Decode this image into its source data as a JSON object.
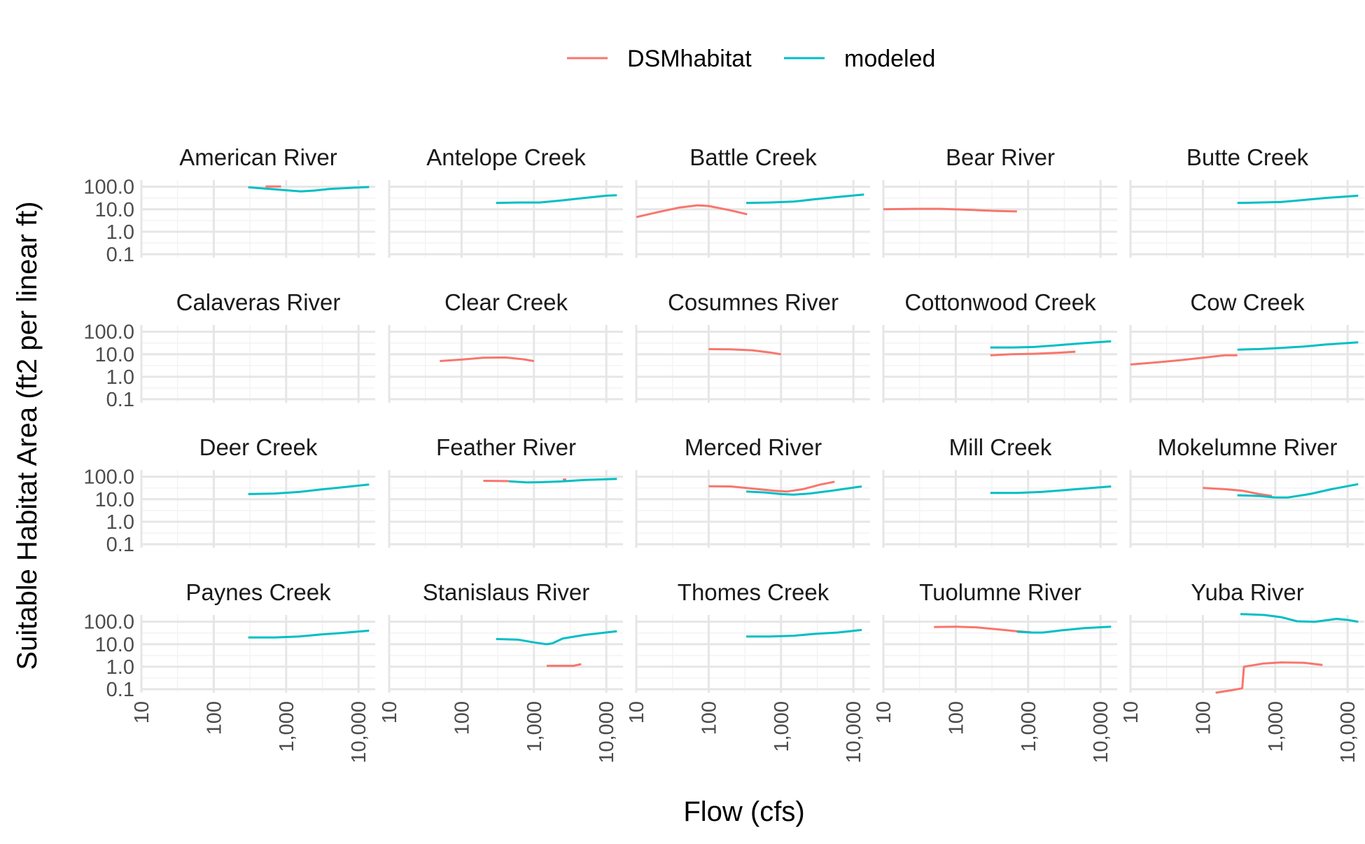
{
  "chart_data": {
    "type": "line",
    "facet": true,
    "grid": true,
    "legend_position": "top",
    "xlabel": "Flow (cfs)",
    "ylabel": "Suitable Habitat Area (ft2 per linear ft)",
    "x_scale": "log",
    "y_scale": "log",
    "xlim": [
      10,
      17000
    ],
    "ylim": [
      0.07,
      200
    ],
    "x_ticks": [
      10,
      100,
      1000,
      10000
    ],
    "x_tick_labels": [
      "10",
      "100",
      "1,000",
      "10,000"
    ],
    "y_ticks": [
      0.1,
      1,
      10,
      100
    ],
    "y_tick_labels": [
      "0.1",
      "1.0",
      "10.0",
      "100.0"
    ],
    "legend": [
      {
        "name": "DSMhabitat",
        "color": "#F8766D"
      },
      {
        "name": "modeled",
        "color": "#00BFC4"
      }
    ],
    "panels": [
      {
        "title": "American River",
        "series": [
          {
            "name": "DSMhabitat",
            "points": [
              [
                520,
                103
              ],
              [
                850,
                103
              ]
            ]
          },
          {
            "name": "modeled",
            "points": [
              [
                300,
                95
              ],
              [
                600,
                80
              ],
              [
                1000,
                70
              ],
              [
                1600,
                62
              ],
              [
                2500,
                68
              ],
              [
                4000,
                80
              ],
              [
                8000,
                90
              ],
              [
                14000,
                98
              ]
            ]
          }
        ]
      },
      {
        "title": "Antelope Creek",
        "series": [
          {
            "name": "modeled",
            "points": [
              [
                300,
                19
              ],
              [
                600,
                20
              ],
              [
                1200,
                20
              ],
              [
                2500,
                25
              ],
              [
                5000,
                32
              ],
              [
                10000,
                40
              ],
              [
                14000,
                42
              ]
            ]
          }
        ]
      },
      {
        "title": "Battle Creek",
        "series": [
          {
            "name": "DSMhabitat",
            "points": [
              [
                10,
                4.5
              ],
              [
                20,
                7.5
              ],
              [
                40,
                12
              ],
              [
                70,
                15
              ],
              [
                100,
                14
              ],
              [
                200,
                9
              ],
              [
                340,
                6
              ]
            ]
          },
          {
            "name": "modeled",
            "points": [
              [
                330,
                19
              ],
              [
                700,
                20
              ],
              [
                1500,
                22
              ],
              [
                3000,
                28
              ],
              [
                6000,
                35
              ],
              [
                14000,
                45
              ]
            ]
          }
        ]
      },
      {
        "title": "Bear River",
        "series": [
          {
            "name": "DSMhabitat",
            "points": [
              [
                10,
                10
              ],
              [
                30,
                10.5
              ],
              [
                60,
                10.5
              ],
              [
                150,
                9.5
              ],
              [
                350,
                8.5
              ],
              [
                700,
                8
              ]
            ]
          }
        ]
      },
      {
        "title": "Butte Creek",
        "series": [
          {
            "name": "modeled",
            "points": [
              [
                300,
                19
              ],
              [
                600,
                20
              ],
              [
                1200,
                21
              ],
              [
                2500,
                26
              ],
              [
                5000,
                32
              ],
              [
                14000,
                40
              ]
            ]
          }
        ]
      },
      {
        "title": "Calaveras River",
        "series": []
      },
      {
        "title": "Clear Creek",
        "series": [
          {
            "name": "DSMhabitat",
            "points": [
              [
                50,
                5
              ],
              [
                100,
                5.8
              ],
              [
                200,
                7
              ],
              [
                400,
                7.2
              ],
              [
                700,
                6
              ],
              [
                1000,
                5
              ]
            ]
          }
        ]
      },
      {
        "title": "Cosumnes River",
        "series": [
          {
            "name": "DSMhabitat",
            "points": [
              [
                100,
                17
              ],
              [
                200,
                16.5
              ],
              [
                400,
                15
              ],
              [
                700,
                12
              ],
              [
                1000,
                10
              ]
            ]
          }
        ]
      },
      {
        "title": "Cottonwood Creek",
        "series": [
          {
            "name": "DSMhabitat",
            "points": [
              [
                300,
                9
              ],
              [
                600,
                10
              ],
              [
                1200,
                10.5
              ],
              [
                2500,
                11.5
              ],
              [
                4500,
                13
              ]
            ]
          },
          {
            "name": "modeled",
            "points": [
              [
                300,
                20
              ],
              [
                600,
                20
              ],
              [
                1200,
                21
              ],
              [
                2500,
                25
              ],
              [
                5000,
                30
              ],
              [
                14000,
                38
              ]
            ]
          }
        ]
      },
      {
        "title": "Cow Creek",
        "series": [
          {
            "name": "DSMhabitat",
            "points": [
              [
                10,
                3.5
              ],
              [
                20,
                4.2
              ],
              [
                50,
                5.5
              ],
              [
                100,
                7
              ],
              [
                200,
                9
              ],
              [
                300,
                9
              ]
            ]
          },
          {
            "name": "modeled",
            "points": [
              [
                300,
                16
              ],
              [
                600,
                17
              ],
              [
                1200,
                19
              ],
              [
                2500,
                22
              ],
              [
                5000,
                27
              ],
              [
                14000,
                34
              ]
            ]
          }
        ]
      },
      {
        "title": "Deer Creek",
        "series": [
          {
            "name": "modeled",
            "points": [
              [
                300,
                17
              ],
              [
                700,
                18
              ],
              [
                1500,
                21
              ],
              [
                3000,
                27
              ],
              [
                6000,
                34
              ],
              [
                14000,
                45
              ]
            ]
          }
        ]
      },
      {
        "title": "Feather River",
        "series": [
          {
            "name": "DSMhabitat",
            "points": [
              [
                200,
                66
              ],
              [
                450,
                64
              ]
            ]
          },
          {
            "name": "DSMhabitat",
            "points": [
              [
                2500,
                75
              ],
              [
                2800,
                76
              ]
            ]
          },
          {
            "name": "modeled",
            "points": [
              [
                450,
                63
              ],
              [
                800,
                56
              ],
              [
                1200,
                57
              ],
              [
                2500,
                62
              ],
              [
                5000,
                72
              ],
              [
                14000,
                80
              ]
            ]
          }
        ]
      },
      {
        "title": "Merced River",
        "series": [
          {
            "name": "DSMhabitat",
            "points": [
              [
                100,
                38
              ],
              [
                200,
                37
              ],
              [
                400,
                30
              ],
              [
                800,
                24
              ],
              [
                1200,
                22
              ],
              [
                2000,
                28
              ],
              [
                3500,
                45
              ],
              [
                5500,
                60
              ]
            ]
          },
          {
            "name": "modeled",
            "points": [
              [
                330,
                22
              ],
              [
                600,
                20
              ],
              [
                1000,
                17
              ],
              [
                1500,
                16
              ],
              [
                2500,
                18
              ],
              [
                5000,
                24
              ],
              [
                13000,
                37
              ]
            ]
          }
        ]
      },
      {
        "title": "Mill Creek",
        "series": [
          {
            "name": "modeled",
            "points": [
              [
                300,
                19
              ],
              [
                700,
                19
              ],
              [
                1500,
                21
              ],
              [
                3000,
                25
              ],
              [
                6000,
                30
              ],
              [
                14000,
                37
              ]
            ]
          }
        ]
      },
      {
        "title": "Mokelumne River",
        "series": [
          {
            "name": "DSMhabitat",
            "points": [
              [
                100,
                32
              ],
              [
                200,
                28
              ],
              [
                350,
                24
              ],
              [
                600,
                17
              ],
              [
                900,
                14
              ]
            ]
          },
          {
            "name": "modeled",
            "points": [
              [
                300,
                15
              ],
              [
                600,
                14
              ],
              [
                1000,
                12
              ],
              [
                1500,
                12
              ],
              [
                3000,
                17
              ],
              [
                6000,
                28
              ],
              [
                14000,
                47
              ]
            ]
          }
        ]
      },
      {
        "title": "Paynes Creek",
        "series": [
          {
            "name": "modeled",
            "points": [
              [
                300,
                20
              ],
              [
                700,
                20
              ],
              [
                1500,
                22
              ],
              [
                3000,
                27
              ],
              [
                6000,
                32
              ],
              [
                14000,
                40
              ]
            ]
          }
        ]
      },
      {
        "title": "Stanislaus River",
        "series": [
          {
            "name": "DSMhabitat",
            "points": [
              [
                1500,
                1.1
              ],
              [
                2500,
                1.1
              ],
              [
                3500,
                1.1
              ],
              [
                4500,
                1.3
              ]
            ]
          },
          {
            "name": "modeled",
            "points": [
              [
                300,
                17
              ],
              [
                600,
                16
              ],
              [
                1000,
                12
              ],
              [
                1500,
                10
              ],
              [
                1800,
                11
              ],
              [
                2500,
                18
              ],
              [
                5000,
                26
              ],
              [
                14000,
                38
              ]
            ]
          }
        ]
      },
      {
        "title": "Thomes Creek",
        "series": [
          {
            "name": "modeled",
            "points": [
              [
                330,
                22
              ],
              [
                700,
                22
              ],
              [
                1500,
                24
              ],
              [
                3000,
                29
              ],
              [
                6000,
                33
              ],
              [
                13000,
                43
              ]
            ]
          }
        ]
      },
      {
        "title": "Tuolumne River",
        "series": [
          {
            "name": "DSMhabitat",
            "points": [
              [
                50,
                58
              ],
              [
                100,
                60
              ],
              [
                200,
                56
              ],
              [
                400,
                45
              ],
              [
                700,
                38
              ],
              [
                1100,
                34
              ]
            ]
          },
          {
            "name": "modeled",
            "points": [
              [
                700,
                36
              ],
              [
                1100,
                33
              ],
              [
                1600,
                33
              ],
              [
                3000,
                42
              ],
              [
                6000,
                52
              ],
              [
                14000,
                60
              ]
            ]
          }
        ]
      },
      {
        "title": "Yuba River",
        "series": [
          {
            "name": "DSMhabitat",
            "points": [
              [
                150,
                0.07
              ],
              [
                250,
                0.09
              ],
              [
                350,
                0.11
              ],
              [
                370,
                1
              ],
              [
                700,
                1.4
              ],
              [
                1200,
                1.55
              ],
              [
                2500,
                1.5
              ],
              [
                4500,
                1.2
              ]
            ]
          },
          {
            "name": "modeled",
            "points": [
              [
                330,
                220
              ],
              [
                700,
                200
              ],
              [
                1200,
                160
              ],
              [
                2000,
                105
              ],
              [
                3500,
                100
              ],
              [
                5500,
                120
              ],
              [
                7000,
                135
              ],
              [
                10000,
                120
              ],
              [
                14000,
                100
              ]
            ]
          }
        ]
      }
    ]
  }
}
